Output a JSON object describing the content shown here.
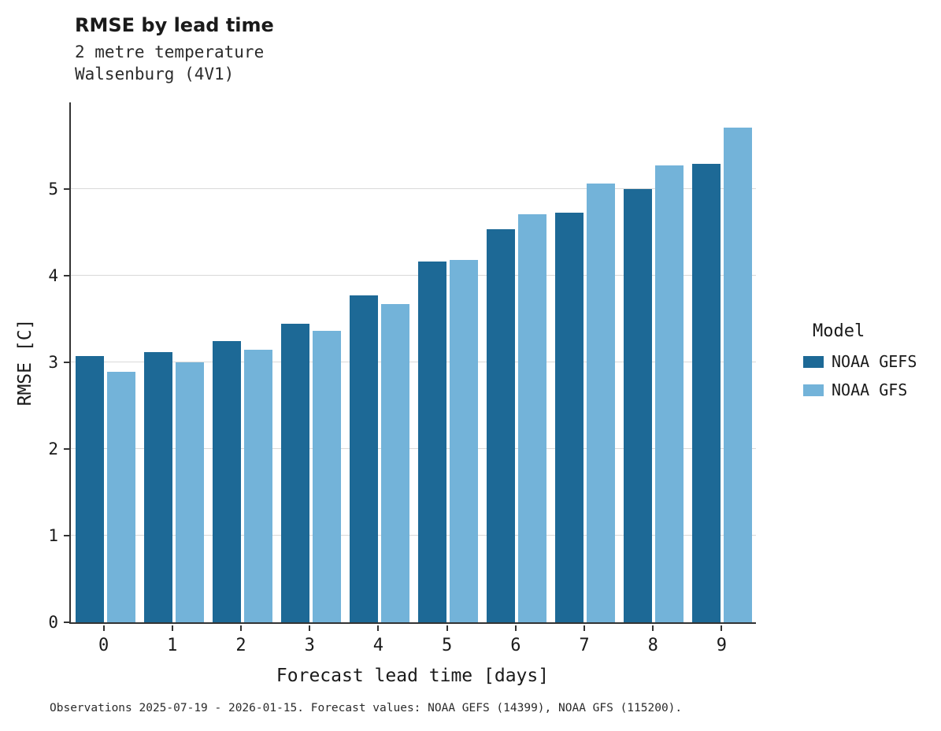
{
  "header": {
    "title": "RMSE by lead time",
    "subtitle_line1": "2 metre temperature",
    "subtitle_line2": "Walsenburg (4V1)"
  },
  "footer": {
    "text": "Observations 2025-07-19 - 2026-01-15. Forecast values: NOAA GEFS (14399), NOAA GFS (115200)."
  },
  "colors": {
    "gefs_dark_blue": "#1d6996",
    "gfs_light_blue": "#73b3d9",
    "gridline": "#d9d9d9",
    "axis": "#333333"
  },
  "chart_data": {
    "type": "bar",
    "title": "RMSE by lead time",
    "subtitle": "2 metre temperature / Walsenburg (4V1)",
    "xlabel": "Forecast lead time [days]",
    "ylabel": "RMSE [C]",
    "categories": [
      "0",
      "1",
      "2",
      "3",
      "4",
      "5",
      "6",
      "7",
      "8",
      "9"
    ],
    "series": [
      {
        "name": "NOAA GEFS",
        "color": "#1d6996",
        "values": [
          3.07,
          3.12,
          3.25,
          3.45,
          3.77,
          4.16,
          4.54,
          4.73,
          5.0,
          5.29
        ]
      },
      {
        "name": "NOAA GFS",
        "color": "#73b3d9",
        "values": [
          2.89,
          3.0,
          3.15,
          3.36,
          3.67,
          4.18,
          4.71,
          5.06,
          5.27,
          5.71
        ]
      }
    ],
    "ylim": [
      0,
      6
    ],
    "yticks": [
      0,
      1,
      2,
      3,
      4,
      5
    ],
    "grid": true,
    "legend_title": "Model",
    "legend_position": "right"
  }
}
